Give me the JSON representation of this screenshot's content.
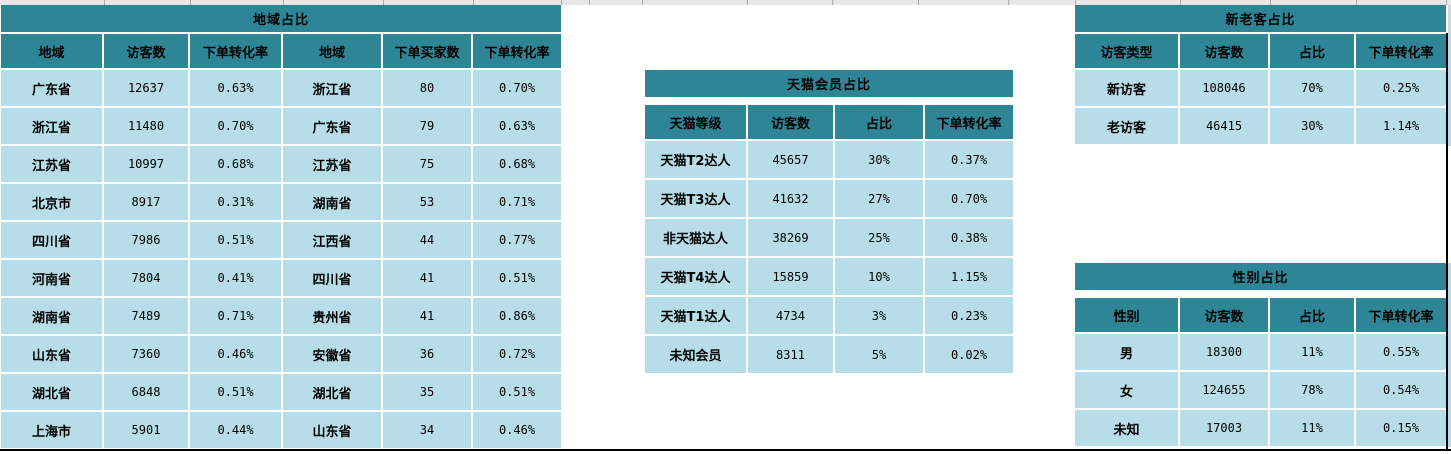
{
  "colors": {
    "header_teal": "#2E8596",
    "row_blue": "#B7DEE8",
    "grid_white": "#FFFFFF",
    "sheet_border_black": "#000000",
    "partial_cell_gray": "#E7E7E7"
  },
  "tables": {
    "region": {
      "title": "地域占比",
      "headers": [
        "地域",
        "访客数",
        "下单转化率",
        "地域",
        "下单买家数",
        "下单转化率"
      ],
      "rows": [
        [
          "广东省",
          "12637",
          "0.63%",
          "浙江省",
          "80",
          "0.70%"
        ],
        [
          "浙江省",
          "11480",
          "0.70%",
          "广东省",
          "79",
          "0.63%"
        ],
        [
          "江苏省",
          "10997",
          "0.68%",
          "江苏省",
          "75",
          "0.68%"
        ],
        [
          "北京市",
          "8917",
          "0.31%",
          "湖南省",
          "53",
          "0.71%"
        ],
        [
          "四川省",
          "7986",
          "0.51%",
          "江西省",
          "44",
          "0.77%"
        ],
        [
          "河南省",
          "7804",
          "0.41%",
          "四川省",
          "41",
          "0.51%"
        ],
        [
          "湖南省",
          "7489",
          "0.71%",
          "贵州省",
          "41",
          "0.86%"
        ],
        [
          "山东省",
          "7360",
          "0.46%",
          "安徽省",
          "36",
          "0.72%"
        ],
        [
          "湖北省",
          "6848",
          "0.51%",
          "湖北省",
          "35",
          "0.51%"
        ],
        [
          "上海市",
          "5901",
          "0.44%",
          "山东省",
          "34",
          "0.46%"
        ]
      ]
    },
    "tmall": {
      "title": "天猫会员占比",
      "headers": [
        "天猫等级",
        "访客数",
        "占比",
        "下单转化率"
      ],
      "rows": [
        [
          "天猫T2达人",
          "45657",
          "30%",
          "0.37%"
        ],
        [
          "天猫T3达人",
          "41632",
          "27%",
          "0.70%"
        ],
        [
          "非天猫达人",
          "38269",
          "25%",
          "0.38%"
        ],
        [
          "天猫T4达人",
          "15859",
          "10%",
          "1.15%"
        ],
        [
          "天猫T1达人",
          "4734",
          "3%",
          "0.23%"
        ],
        [
          "未知会员",
          "8311",
          "5%",
          "0.02%"
        ]
      ]
    },
    "visitor_type": {
      "title": "新老客占比",
      "headers": [
        "访客类型",
        "访客数",
        "占比",
        "下单转化率"
      ],
      "rows": [
        [
          "新访客",
          "108046",
          "70%",
          "0.25%"
        ],
        [
          "老访客",
          "46415",
          "30%",
          "1.14%"
        ]
      ]
    },
    "gender": {
      "title": "性别占比",
      "headers": [
        "性别",
        "访客数",
        "占比",
        "下单转化率"
      ],
      "rows": [
        [
          "男",
          "18300",
          "11%",
          "0.55%"
        ],
        [
          "女",
          "124655",
          "78%",
          "0.54%"
        ],
        [
          "未知",
          "17003",
          "11%",
          "0.15%"
        ]
      ]
    }
  }
}
